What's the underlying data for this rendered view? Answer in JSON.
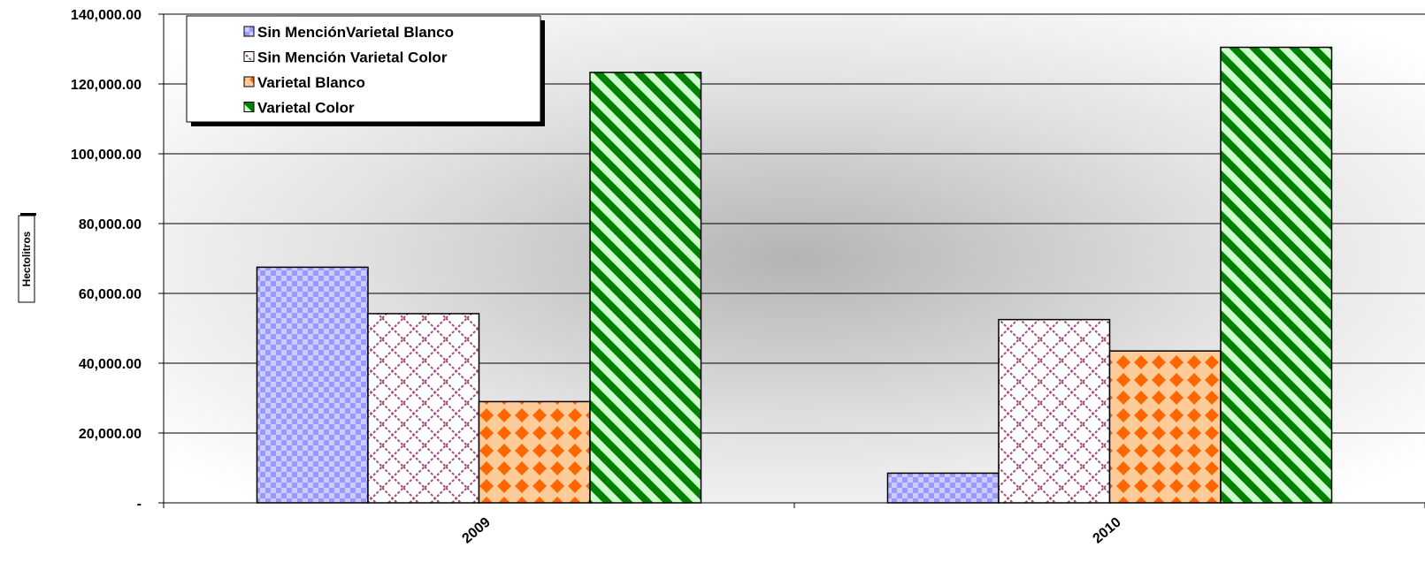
{
  "chart_data": {
    "type": "bar",
    "title": "",
    "xlabel": "",
    "ylabel": "Hectolitros",
    "categories": [
      "2009",
      "2010"
    ],
    "series": [
      {
        "name": "Sin MenciónVarietal Blanco",
        "values": [
          67500,
          8500
        ],
        "color": "#9999ff"
      },
      {
        "name": "Sin Mención Varietal Color",
        "values": [
          54200,
          52500
        ],
        "color": "#993366"
      },
      {
        "name": "Varietal Blanco",
        "values": [
          29000,
          43500
        ],
        "color": "#ff6600"
      },
      {
        "name": "Varietal Color",
        "values": [
          123300,
          130500
        ],
        "color": "#008000"
      }
    ],
    "ylim": [
      0,
      140000
    ],
    "y_ticks": [
      0,
      20000,
      40000,
      60000,
      80000,
      100000,
      120000,
      140000
    ],
    "y_tick_labels": [
      "-",
      "20,000.00",
      "40,000.00",
      "60,000.00",
      "80,000.00",
      "100,000.00",
      "120,000.00",
      "140,000.00"
    ],
    "grid": true,
    "legend_position": "top-left"
  }
}
